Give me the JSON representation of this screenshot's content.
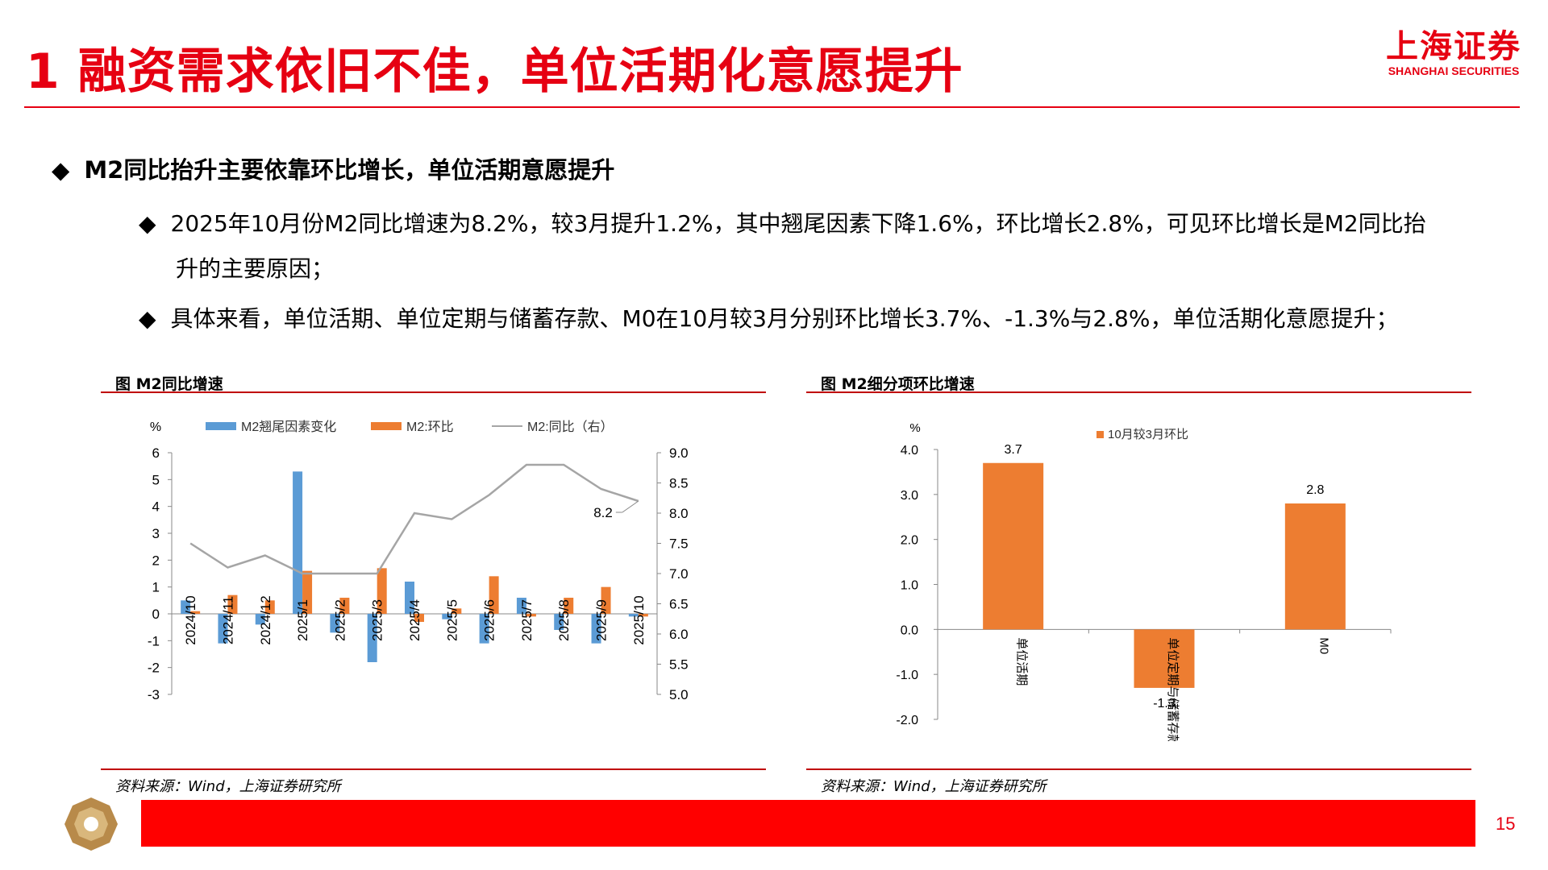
{
  "page": {
    "title": "1 融资需求依旧不佳，单位活期化意愿提升",
    "logo_cn": "上海证券",
    "logo_en": "SHANGHAI SECURITIES",
    "page_number": "15"
  },
  "bullets": {
    "main": "M2同比抬升主要依靠环比增长，单位活期意愿提升",
    "item1_line1": "2025年10月份M2同比增速为8.2%，较3月提升1.2%，其中翘尾因素下降1.6%，环比增长2.8%，可见环比增长是M2同比抬",
    "item1_line2": "升的主要原因；",
    "item2": "具体来看，单位活期、单位定期与储蓄存款、M0在10月较3月分别环比增长3.7%、-1.3%与2.8%，单位活期化意愿提升；",
    "diamond": "◆"
  },
  "left_panel": {
    "heading": "图 M2同比增速",
    "source": "资料来源：Wind，上海证券研究所"
  },
  "right_panel": {
    "heading": "图 M2细分项环比增速",
    "source": "资料来源：Wind，上海证券研究所"
  },
  "colors": {
    "brand_red": "#e60012",
    "blue": "#5b9bd5",
    "orange": "#ed7d31",
    "gray_line": "#a5a5a5"
  },
  "chart_data": [
    {
      "type": "bar",
      "title": "",
      "ylabel": "%",
      "ylim": [
        -3,
        6
      ],
      "y2lim": [
        5.0,
        9.0
      ],
      "categories": [
        "2024/10",
        "2024/11",
        "2024/12",
        "2025/1",
        "2025/2",
        "2025/3",
        "2025/4",
        "2025/5",
        "2025/6",
        "2025/7",
        "2025/8",
        "2025/9",
        "2025/10"
      ],
      "series": [
        {
          "name": "M2翘尾因素变化",
          "type": "bar",
          "axis": "left",
          "color": "#5b9bd5",
          "values": [
            0.5,
            -1.1,
            -0.4,
            5.3,
            -0.7,
            -1.8,
            1.2,
            -0.2,
            -1.1,
            0.6,
            -0.6,
            -1.1,
            -0.1
          ]
        },
        {
          "name": "M2:环比",
          "type": "bar",
          "axis": "left",
          "color": "#ed7d31",
          "values": [
            0.1,
            0.7,
            0.5,
            1.6,
            0.6,
            1.7,
            -0.3,
            0.2,
            1.4,
            -0.1,
            0.6,
            1.0,
            -0.1
          ]
        },
        {
          "name": "M2:同比（右）",
          "type": "line",
          "axis": "right",
          "color": "#a5a5a5",
          "values": [
            7.5,
            7.1,
            7.3,
            7.0,
            7.0,
            7.0,
            8.0,
            7.9,
            8.3,
            8.8,
            8.8,
            8.4,
            8.2
          ]
        }
      ],
      "y_ticks": [
        "6",
        "5",
        "4",
        "3",
        "2",
        "1",
        "0",
        "-1",
        "-2",
        "-3"
      ],
      "y2_ticks": [
        "9.0",
        "8.5",
        "8.0",
        "7.5",
        "7.0",
        "6.5",
        "6.0",
        "5.5",
        "5.0"
      ],
      "annotation": "8.2",
      "legend": "top",
      "grid": false
    },
    {
      "type": "bar",
      "title": "",
      "ylabel": "%",
      "ylim": [
        -2.0,
        4.0
      ],
      "categories": [
        "单位活期",
        "单位定期与储蓄存款",
        "M0"
      ],
      "series": [
        {
          "name": "10月较3月环比",
          "color": "#ed7d31",
          "values": [
            3.7,
            -1.3,
            2.8
          ]
        }
      ],
      "data_labels": [
        "3.7",
        "-1.3",
        "2.8"
      ],
      "y_ticks": [
        "4.0",
        "3.0",
        "2.0",
        "1.0",
        "0.0",
        "-1.0",
        "-2.0"
      ],
      "legend": "top",
      "grid": false
    }
  ]
}
